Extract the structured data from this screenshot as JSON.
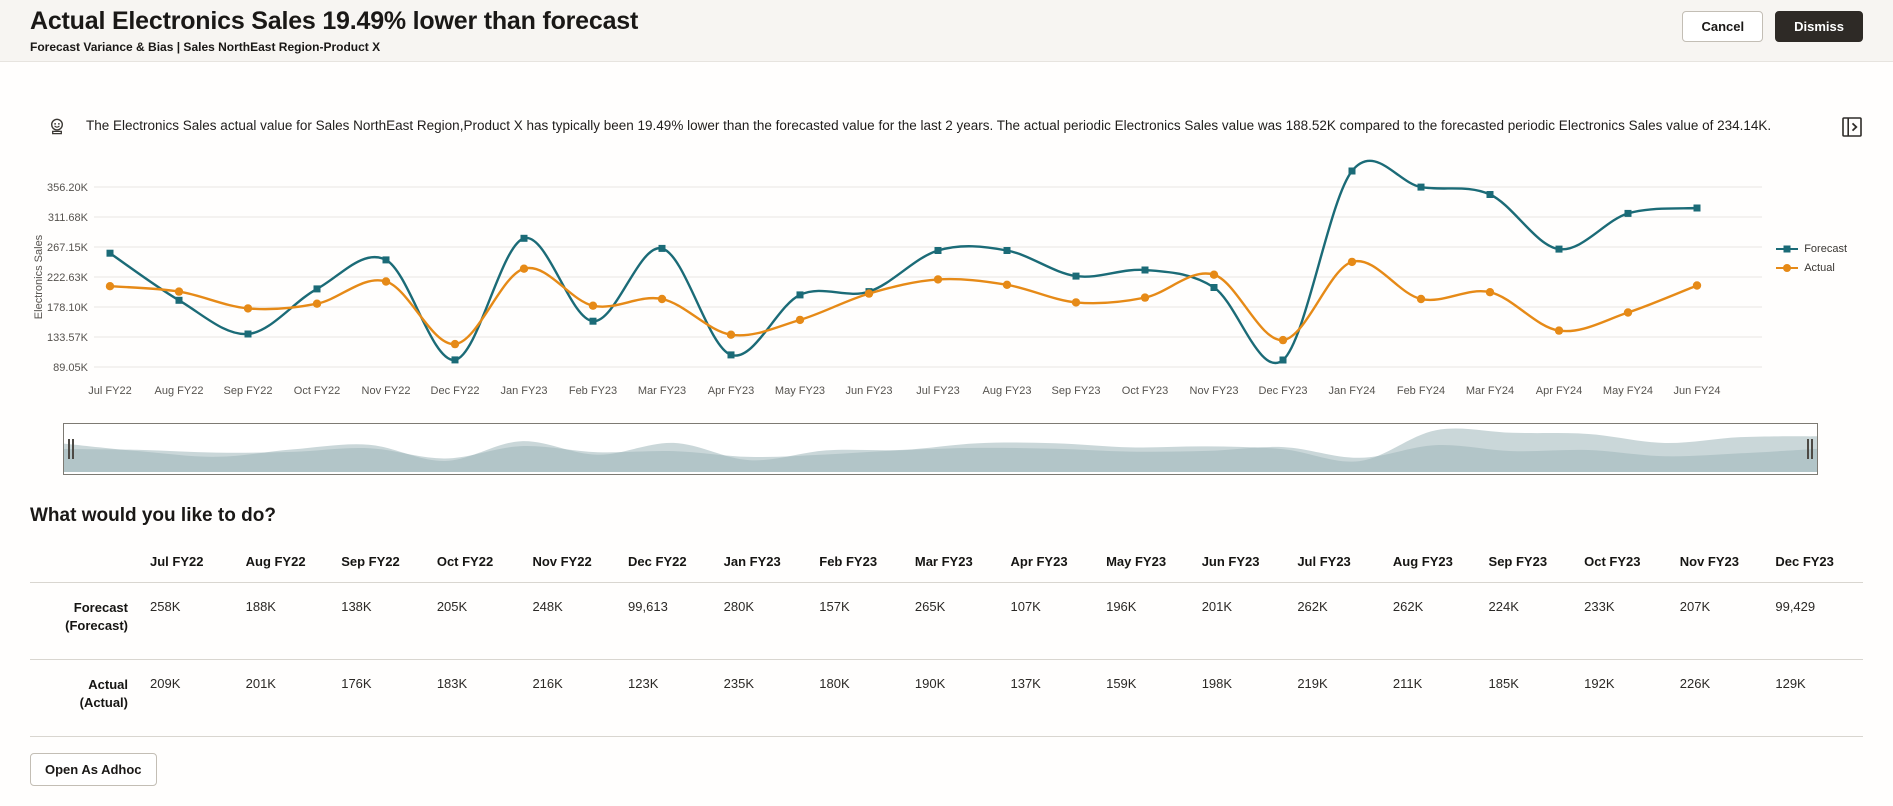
{
  "header": {
    "title": "Actual Electronics Sales 19.49% lower than forecast",
    "subtitle": "Forecast Variance & Bias | Sales NorthEast Region-Product X",
    "cancel_label": "Cancel",
    "dismiss_label": "Dismiss"
  },
  "insight": {
    "icon": "crystal-ball-icon",
    "text": "The Electronics Sales actual value for Sales NorthEast Region,Product X has typically been 19.49% lower than the forecasted value for the last 2 years. The actual periodic Electronics Sales value was 188.52K compared to the forecasted periodic Electronics Sales value of 234.14K.",
    "expand_icon": "open-panel-right-icon"
  },
  "colors": {
    "forecast": "#1b6b77",
    "actual": "#e68a17",
    "dismiss_bg": "#2e2a26",
    "scroller_fill": "#9fb6ba",
    "gridline": "#e9e7e3"
  },
  "chart_data": {
    "type": "line",
    "title": "",
    "xlabel": "",
    "ylabel": "Electronics Sales",
    "grid": true,
    "legend_position": "right",
    "ylim": [
      89050,
      380000
    ],
    "y_ticks": [
      "356.20K",
      "311.68K",
      "267.15K",
      "222.63K",
      "178.10K",
      "133.57K",
      "89.05K"
    ],
    "y_tick_values": [
      356200,
      311680,
      267150,
      222630,
      178100,
      133570,
      89050
    ],
    "categories": [
      "Jul FY22",
      "Aug FY22",
      "Sep FY22",
      "Oct FY22",
      "Nov FY22",
      "Dec FY22",
      "Jan FY23",
      "Feb FY23",
      "Mar FY23",
      "Apr FY23",
      "May FY23",
      "Jun FY23",
      "Jul FY23",
      "Aug FY23",
      "Sep FY23",
      "Oct FY23",
      "Nov FY23",
      "Dec FY23",
      "Jan FY24",
      "Feb FY24",
      "Mar FY24",
      "Apr FY24",
      "May FY24",
      "Jun FY24"
    ],
    "series": [
      {
        "name": "Forecast",
        "color": "#1b6b77",
        "marker": "square",
        "values": [
          258000,
          188000,
          138000,
          205000,
          248000,
          99613,
          280000,
          157000,
          265000,
          107000,
          196000,
          201000,
          262000,
          262000,
          224000,
          233000,
          207000,
          99429,
          380000,
          356000,
          345000,
          264000,
          317000,
          325000
        ]
      },
      {
        "name": "Actual",
        "color": "#e68a17",
        "marker": "circle",
        "values": [
          209000,
          201000,
          176000,
          183000,
          216000,
          123000,
          235000,
          180000,
          190000,
          137000,
          159000,
          198000,
          219000,
          211000,
          185000,
          192000,
          226000,
          129000,
          245000,
          190000,
          200000,
          143000,
          170000,
          210000
        ]
      }
    ]
  },
  "scroller": {
    "left_handle_icon": "drag-handle-icon",
    "right_handle_icon": "drag-handle-icon"
  },
  "actions": {
    "heading": "What would you like to do?",
    "open_adhoc_label": "Open As Adhoc"
  },
  "table": {
    "columns": [
      "Jul FY22",
      "Aug FY22",
      "Sep FY22",
      "Oct FY22",
      "Nov FY22",
      "Dec FY22",
      "Jan FY23",
      "Feb FY23",
      "Mar FY23",
      "Apr FY23",
      "May FY23",
      "Jun FY23",
      "Jul FY23",
      "Aug FY23",
      "Sep FY23",
      "Oct FY23",
      "Nov FY23",
      "Dec FY23"
    ],
    "rows": [
      {
        "name": "Forecast",
        "qualifier": "(Forecast)",
        "values": [
          "258K",
          "188K",
          "138K",
          "205K",
          "248K",
          "99,613",
          "280K",
          "157K",
          "265K",
          "107K",
          "196K",
          "201K",
          "262K",
          "262K",
          "224K",
          "233K",
          "207K",
          "99,429"
        ]
      },
      {
        "name": "Actual",
        "qualifier": "(Actual)",
        "values": [
          "209K",
          "201K",
          "176K",
          "183K",
          "216K",
          "123K",
          "235K",
          "180K",
          "190K",
          "137K",
          "159K",
          "198K",
          "219K",
          "211K",
          "185K",
          "192K",
          "226K",
          "129K"
        ]
      }
    ]
  }
}
